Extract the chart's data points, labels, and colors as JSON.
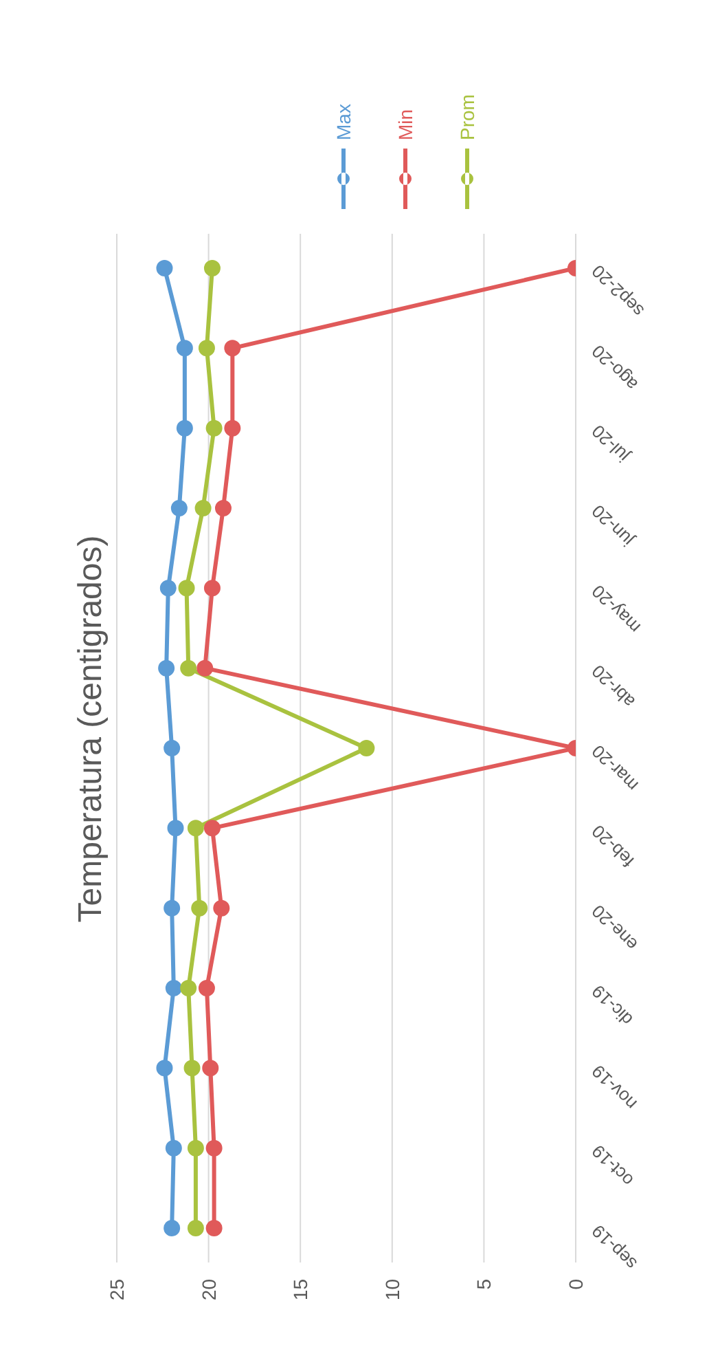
{
  "chart_data": {
    "type": "line",
    "title": "Temperatura (centigrados)",
    "orientation": "horizontal",
    "categories": [
      "sep2-20",
      "ago-20",
      "jul-20",
      "jun-20",
      "may-20",
      "abr-20",
      "mar-20",
      "feb-20",
      "ene-20",
      "dic-19",
      "nov-19",
      "oct-19",
      "sep-19"
    ],
    "series": [
      {
        "name": "Max",
        "color": "#5b9bd5",
        "values": [
          22.4,
          21.3,
          21.3,
          21.6,
          22.2,
          22.3,
          22.0,
          21.8,
          22.0,
          21.9,
          22.4,
          21.9,
          22.0
        ]
      },
      {
        "name": "Min",
        "color": "#e05a5a",
        "values": [
          0,
          18.7,
          18.7,
          19.2,
          19.8,
          20.2,
          0,
          19.8,
          19.3,
          20.1,
          19.9,
          19.7,
          19.7
        ]
      },
      {
        "name": "Prom",
        "color": "#a9c23f",
        "values": [
          19.8,
          20.1,
          19.7,
          20.3,
          21.2,
          21.1,
          11.4,
          20.7,
          20.5,
          21.1,
          20.9,
          20.7,
          20.7
        ]
      }
    ],
    "xlim": [
      25,
      0
    ],
    "xticks": [
      25,
      20,
      15,
      10,
      5,
      0
    ],
    "grid": "x",
    "legend": "top right",
    "marker": "circle",
    "line_style": "solid"
  }
}
